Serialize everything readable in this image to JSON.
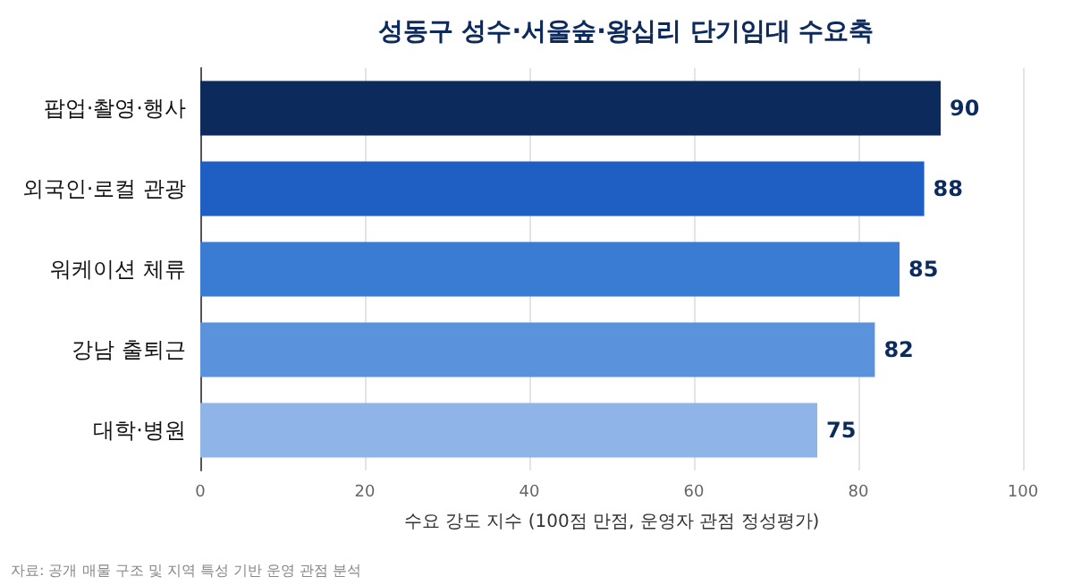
{
  "chart_data": {
    "type": "bar",
    "orientation": "horizontal",
    "title": "성동구 성수·서울숲·왕십리 단기임대 수요축",
    "categories": [
      "팝업·촬영·행사",
      "외국인·로컬 관광",
      "워케이션 체류",
      "강남 출퇴근",
      "대학·병원"
    ],
    "values": [
      90,
      88,
      85,
      82,
      75
    ],
    "colors": [
      "#0c2a5c",
      "#1f5ec2",
      "#3a7bd4",
      "#5a92dc",
      "#8fb5e8"
    ],
    "xlim": [
      0,
      100
    ],
    "xticks": [
      0,
      20,
      40,
      60,
      80,
      100
    ],
    "grid": "x",
    "data_labels": true,
    "xlabel": "수요 강도 지수 (100점 만점, 운영자 관점 정성평가)",
    "annotations": [
      "자료: 공개 매물 구조 및 지역 특성 기반 운영 관점 분석"
    ]
  }
}
